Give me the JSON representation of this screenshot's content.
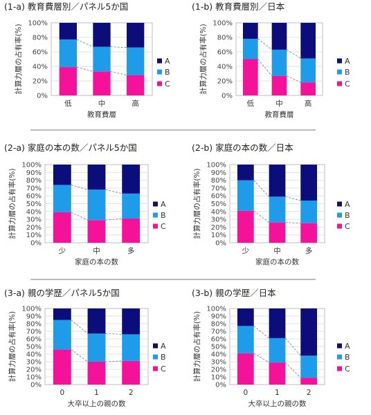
{
  "colors": {
    "A": "#0b0e7a",
    "B": "#1e9be9",
    "C": "#f5129b"
  },
  "legend": [
    "A",
    "B",
    "C"
  ],
  "chart_data": [
    {
      "type": "bar",
      "stacked": true,
      "title": "(1-a) 教育費層別／パネル5か国",
      "categories": [
        "低",
        "中",
        "高"
      ],
      "xlabel": "教育費層",
      "ylabel": "計算力層の占有率(%)",
      "ylim": [
        0,
        100
      ],
      "yticks": [
        "0%",
        "20%",
        "40%",
        "60%",
        "80%",
        "100%"
      ],
      "series": [
        {
          "name": "C",
          "values": [
            39,
            33,
            28
          ]
        },
        {
          "name": "B",
          "values": [
            38,
            34,
            38
          ]
        },
        {
          "name": "A",
          "values": [
            23,
            33,
            34
          ]
        }
      ]
    },
    {
      "type": "bar",
      "stacked": true,
      "title": "(1-b) 教育費層別／日本",
      "categories": [
        "低",
        "中",
        "高"
      ],
      "xlabel": "教育費層",
      "ylabel": "計算力層の占有率(%)",
      "ylim": [
        0,
        100
      ],
      "yticks": [
        "0%",
        "20%",
        "40%",
        "60%",
        "80%",
        "100%"
      ],
      "series": [
        {
          "name": "C",
          "values": [
            50,
            27,
            18
          ]
        },
        {
          "name": "B",
          "values": [
            28,
            36,
            33
          ]
        },
        {
          "name": "A",
          "values": [
            22,
            37,
            49
          ]
        }
      ]
    },
    {
      "type": "bar",
      "stacked": true,
      "title": "(2-a) 家庭の本の数／パネル5か国",
      "categories": [
        "少",
        "中",
        "多"
      ],
      "xlabel": "家庭の本の数",
      "ylabel": "計算力層の占有率(%)",
      "ylim": [
        0,
        100
      ],
      "yticks": [
        "0%",
        "10%",
        "20%",
        "30%",
        "40%",
        "50%",
        "60%",
        "70%",
        "80%",
        "90%",
        "100%"
      ],
      "series": [
        {
          "name": "C",
          "values": [
            39,
            29,
            31
          ]
        },
        {
          "name": "B",
          "values": [
            35,
            39,
            32
          ]
        },
        {
          "name": "A",
          "values": [
            26,
            32,
            37
          ]
        }
      ]
    },
    {
      "type": "bar",
      "stacked": true,
      "title": "(2-b) 家庭の本の数／日本",
      "categories": [
        "少",
        "中",
        "多"
      ],
      "xlabel": "家庭の本の数",
      "ylabel": "計算力層の占有率(%)",
      "ylim": [
        0,
        100
      ],
      "yticks": [
        "0%",
        "10%",
        "20%",
        "30%",
        "40%",
        "50%",
        "60%",
        "70%",
        "80%",
        "90%",
        "100%"
      ],
      "series": [
        {
          "name": "C",
          "values": [
            41,
            26,
            25
          ]
        },
        {
          "name": "B",
          "values": [
            39,
            33,
            29
          ]
        },
        {
          "name": "A",
          "values": [
            20,
            41,
            46
          ]
        }
      ]
    },
    {
      "type": "bar",
      "stacked": true,
      "title": "(3-a) 親の学歴／パネル5か国",
      "categories": [
        "0",
        "1",
        "2"
      ],
      "xlabel": "大卒以上の親の数",
      "ylabel": "計算力層の占有率(%)",
      "ylim": [
        0,
        100
      ],
      "yticks": [
        "0%",
        "10%",
        "20%",
        "30%",
        "40%",
        "50%",
        "60%",
        "70%",
        "80%",
        "90%",
        "100%"
      ],
      "series": [
        {
          "name": "C",
          "values": [
            46,
            30,
            31
          ]
        },
        {
          "name": "B",
          "values": [
            39,
            37,
            35
          ]
        },
        {
          "name": "A",
          "values": [
            15,
            33,
            34
          ]
        }
      ]
    },
    {
      "type": "bar",
      "stacked": true,
      "title": "(3-b) 親の学歴／日本",
      "categories": [
        "0",
        "1",
        "2"
      ],
      "xlabel": "大卒以上の親の数",
      "ylabel": "計算力層の占有率(%)",
      "ylim": [
        0,
        100
      ],
      "yticks": [
        "0%",
        "10%",
        "20%",
        "30%",
        "40%",
        "50%",
        "60%",
        "70%",
        "80%",
        "90%",
        "100%"
      ],
      "series": [
        {
          "name": "C",
          "values": [
            41,
            29,
            9
          ]
        },
        {
          "name": "B",
          "values": [
            36,
            32,
            29
          ]
        },
        {
          "name": "A",
          "values": [
            23,
            39,
            62
          ]
        }
      ]
    }
  ]
}
